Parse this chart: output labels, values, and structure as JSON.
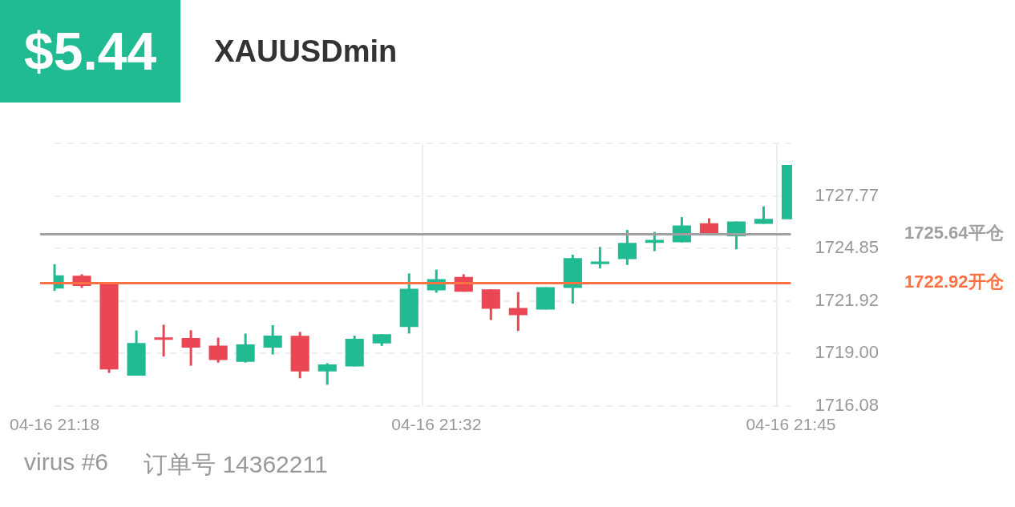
{
  "chart_data": {
    "type": "candlestick",
    "title": "$5.44",
    "subtitle": "XAUUSDmin",
    "categories": [
      "04-16 21:18",
      null,
      null,
      null,
      null,
      null,
      null,
      null,
      null,
      null,
      null,
      null,
      null,
      null,
      "04-16 21:32",
      null,
      null,
      null,
      null,
      null,
      null,
      null,
      null,
      null,
      null,
      null,
      null,
      "04-16 21:45"
    ],
    "ohlc": [
      [
        1722.62,
        1723.97,
        1722.49,
        1723.35
      ],
      [
        1723.33,
        1723.41,
        1722.65,
        1722.76
      ],
      [
        1722.9,
        1722.9,
        1717.92,
        1718.11
      ],
      [
        1717.77,
        1720.28,
        1717.77,
        1719.58
      ],
      [
        1719.9,
        1720.6,
        1718.83,
        1719.76
      ],
      [
        1719.86,
        1720.29,
        1718.32,
        1719.33
      ],
      [
        1719.44,
        1719.88,
        1718.49,
        1718.63
      ],
      [
        1718.53,
        1720.11,
        1718.49,
        1719.5
      ],
      [
        1719.33,
        1720.58,
        1718.95,
        1720.0
      ],
      [
        1719.98,
        1720.2,
        1717.62,
        1718.0
      ],
      [
        1718.0,
        1718.46,
        1717.26,
        1718.39
      ],
      [
        1718.28,
        1719.99,
        1718.28,
        1719.82
      ],
      [
        1719.56,
        1720.07,
        1719.42,
        1720.07
      ],
      [
        1720.48,
        1723.46,
        1720.11,
        1722.6
      ],
      [
        1722.52,
        1723.67,
        1722.39,
        1723.14
      ],
      [
        1723.26,
        1723.41,
        1722.44,
        1722.44
      ],
      [
        1722.57,
        1722.57,
        1720.86,
        1721.49
      ],
      [
        1721.53,
        1722.42,
        1720.26,
        1721.13
      ],
      [
        1721.45,
        1722.69,
        1721.45,
        1722.69
      ],
      [
        1722.65,
        1724.5,
        1721.78,
        1724.31
      ],
      [
        1723.98,
        1724.93,
        1723.74,
        1724.12
      ],
      [
        1724.25,
        1725.88,
        1723.93,
        1725.16
      ],
      [
        1725.16,
        1725.77,
        1724.7,
        1725.32
      ],
      [
        1725.19,
        1726.59,
        1725.19,
        1726.13
      ],
      [
        1726.25,
        1726.53,
        1725.67,
        1725.67
      ],
      [
        1725.53,
        1726.35,
        1724.8,
        1726.35
      ],
      [
        1726.22,
        1727.19,
        1726.22,
        1726.5
      ],
      [
        1726.47,
        1729.5,
        1726.47,
        1729.5
      ]
    ],
    "colors": [
      "#20bb92",
      "#eb4654",
      "#eb4654",
      "#20bb92",
      "#eb4654",
      "#eb4654",
      "#eb4654",
      "#20bb92",
      "#20bb92",
      "#eb4654",
      "#20bb92",
      "#20bb92",
      "#20bb92",
      "#20bb92",
      "#20bb92",
      "#eb4654",
      "#eb4654",
      "#eb4654",
      "#20bb92",
      "#20bb92",
      "#20bb92",
      "#20bb92",
      "#20bb92",
      "#20bb92",
      "#eb4654",
      "#20bb92",
      "#20bb92",
      "#20bb92"
    ],
    "ylim": [
      1716.08,
      1730.69
    ],
    "yticks": [
      1716.08,
      {
        "value": 1719,
        "label": "1719.00"
      },
      1721.92,
      1724.85,
      1727.77,
      {
        "value": 1730.69,
        "label": null
      }
    ],
    "grid": true,
    "legend": false,
    "ref_lines": [
      {
        "axis": "y",
        "value": 1725.64,
        "label": "1725.64平仓",
        "color": "#a0a0a0"
      },
      {
        "axis": "y",
        "value": 1722.92,
        "label": "1722.92开仓",
        "color": "#ff7043"
      }
    ],
    "annotations": [
      "virus #6",
      "订单号 14362211"
    ]
  }
}
